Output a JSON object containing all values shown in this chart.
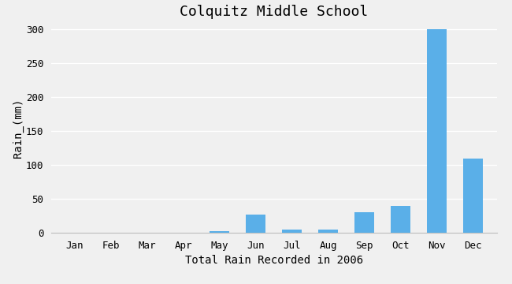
{
  "title": "Colquitz Middle School",
  "xlabel": "Total Rain Recorded in 2006",
  "ylabel": "Rain_(mm)",
  "months": [
    "Jan",
    "Feb",
    "Mar",
    "Apr",
    "May",
    "Jun",
    "Jul",
    "Aug",
    "Sep",
    "Oct",
    "Nov",
    "Dec"
  ],
  "values": [
    0,
    0,
    0,
    0,
    2,
    27,
    5,
    5,
    30,
    40,
    300,
    110
  ],
  "bar_color": "#5aafe8",
  "bg_color": "#f0f0f0",
  "plot_bg_color": "#f0f0f0",
  "grid_color": "#ffffff",
  "ylim": [
    0,
    310
  ],
  "yticks": [
    0,
    50,
    100,
    150,
    200,
    250,
    300
  ],
  "title_fontsize": 13,
  "label_fontsize": 10,
  "tick_fontsize": 9
}
